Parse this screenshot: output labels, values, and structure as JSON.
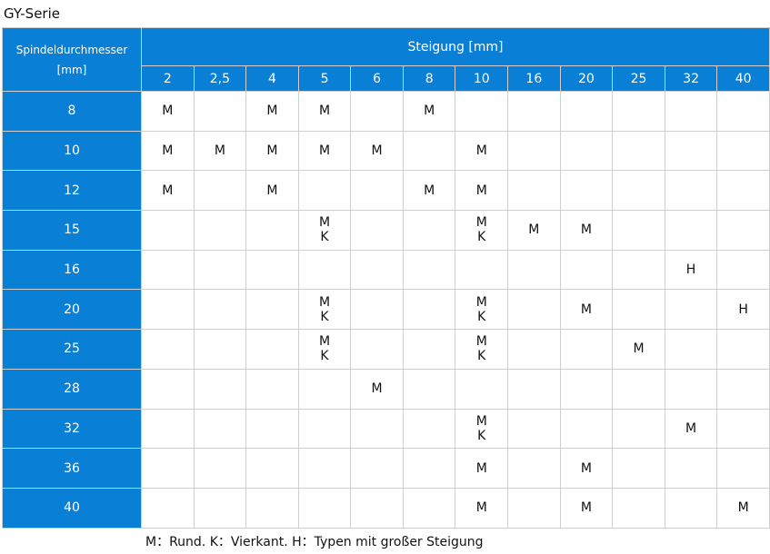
{
  "title": "GY-Serie",
  "table": {
    "corner_label": "Spindeldurchmesser\n[mm]",
    "group_label": "Steigung [mm]",
    "columns": [
      "2",
      "2,5",
      "4",
      "5",
      "6",
      "8",
      "10",
      "16",
      "20",
      "25",
      "32",
      "40"
    ],
    "rows": [
      {
        "diameter": "8",
        "cells": [
          "M",
          "",
          "M",
          "M",
          "",
          "M",
          "",
          "",
          "",
          "",
          "",
          ""
        ]
      },
      {
        "diameter": "10",
        "cells": [
          "M",
          "M",
          "M",
          "M",
          "M",
          "",
          "M",
          "",
          "",
          "",
          "",
          ""
        ]
      },
      {
        "diameter": "12",
        "cells": [
          "M",
          "",
          "M",
          "",
          "",
          "M",
          "M",
          "",
          "",
          "",
          "",
          ""
        ]
      },
      {
        "diameter": "15",
        "cells": [
          "",
          "",
          "",
          "M\nK",
          "",
          "",
          "M\nK",
          "M",
          "M",
          "",
          "",
          ""
        ]
      },
      {
        "diameter": "16",
        "cells": [
          "",
          "",
          "",
          "",
          "",
          "",
          "",
          "",
          "",
          "",
          "H",
          ""
        ]
      },
      {
        "diameter": "20",
        "cells": [
          "",
          "",
          "",
          "M\nK",
          "",
          "",
          "M\nK",
          "",
          "M",
          "",
          "",
          "H"
        ]
      },
      {
        "diameter": "25",
        "cells": [
          "",
          "",
          "",
          "M\nK",
          "",
          "",
          "M\nK",
          "",
          "",
          "M",
          "",
          ""
        ]
      },
      {
        "diameter": "28",
        "cells": [
          "",
          "",
          "",
          "",
          "M",
          "",
          "",
          "",
          "",
          "",
          "",
          ""
        ]
      },
      {
        "diameter": "32",
        "cells": [
          "",
          "",
          "",
          "",
          "",
          "",
          "M\nK",
          "",
          "",
          "",
          "M",
          ""
        ]
      },
      {
        "diameter": "36",
        "cells": [
          "",
          "",
          "",
          "",
          "",
          "",
          "M",
          "",
          "M",
          "",
          "",
          ""
        ]
      },
      {
        "diameter": "40",
        "cells": [
          "",
          "",
          "",
          "",
          "",
          "",
          "M",
          "",
          "M",
          "",
          "",
          "M"
        ]
      }
    ]
  },
  "legend": "M：Rund. K：Vierkant. H：Typen mit großer Steigung",
  "colors": {
    "header_bg": "#0a7fd6",
    "header_text": "#ffffff",
    "border": "#cfcfcf"
  }
}
